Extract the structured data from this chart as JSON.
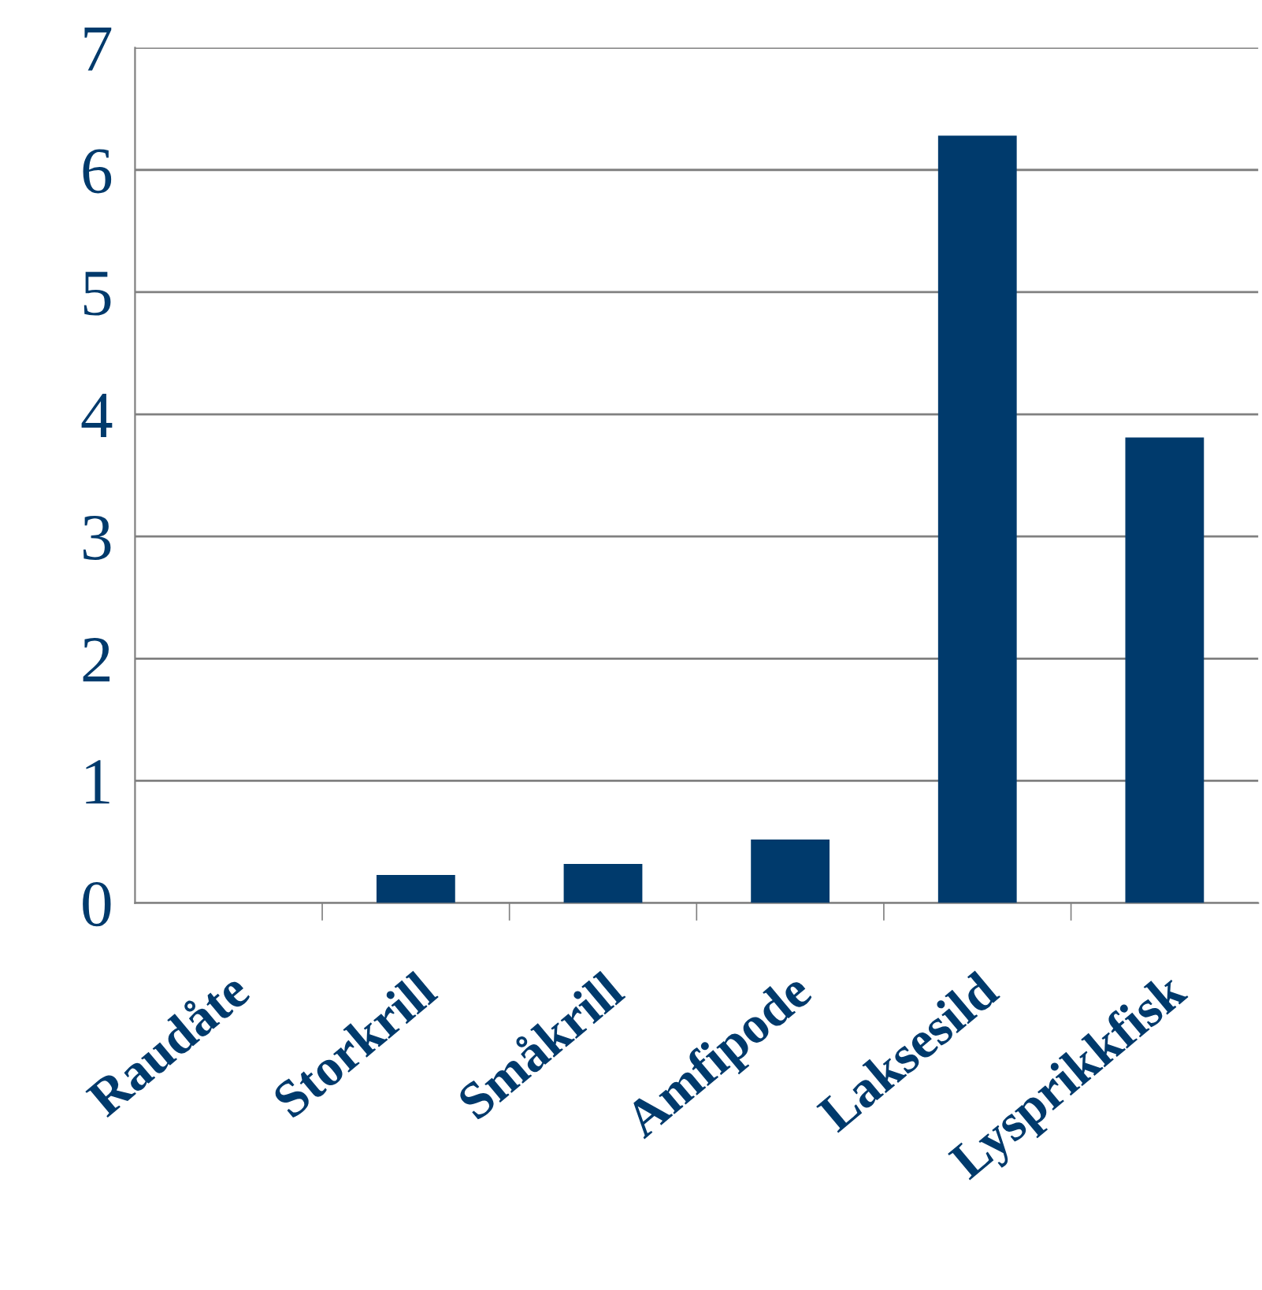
{
  "chart_data": {
    "type": "bar",
    "categories": [
      "Raudåte",
      "Storkrill",
      "Småkrill",
      "Amfipode",
      "Laksesild",
      "Lysprikkfisk"
    ],
    "values": [
      0,
      0.23,
      0.32,
      0.52,
      6.28,
      3.81
    ],
    "color": "#003a6c",
    "ylim": [
      0,
      7
    ],
    "yticks": [
      0,
      1,
      2,
      3,
      4,
      5,
      6,
      7
    ],
    "grid": "y",
    "legend": false
  }
}
